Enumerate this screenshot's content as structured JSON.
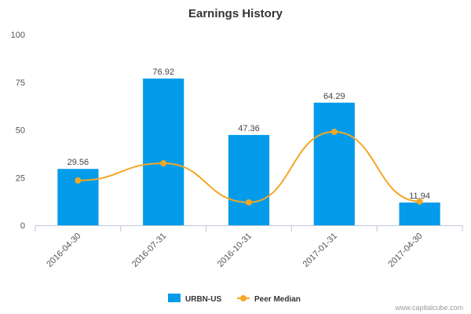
{
  "chart_data": {
    "type": "bar",
    "title": "Earnings History",
    "xlabel": "",
    "ylabel": "",
    "ylim": [
      0,
      100
    ],
    "yticks": [
      0,
      25,
      50,
      75,
      100
    ],
    "categories": [
      "2016-04-30",
      "2016-07-31",
      "2016-10-31",
      "2017-01-31",
      "2017-04-30"
    ],
    "series": [
      {
        "name": "URBN-US",
        "kind": "bar",
        "values": [
          29.56,
          76.92,
          47.36,
          64.29,
          11.94
        ],
        "data_labels": [
          "29.56",
          "76.92",
          "47.36",
          "64.29",
          "11.94"
        ]
      },
      {
        "name": "Peer Median",
        "kind": "line",
        "values": [
          23.5,
          32.5,
          12,
          49,
          12.5
        ]
      }
    ],
    "legend_position": "bottom",
    "grid": false
  },
  "colors": {
    "bar": "#049cea",
    "line": "#f5a623",
    "axis": "#c0c8d8"
  },
  "credit": "www.capitalcube.com"
}
